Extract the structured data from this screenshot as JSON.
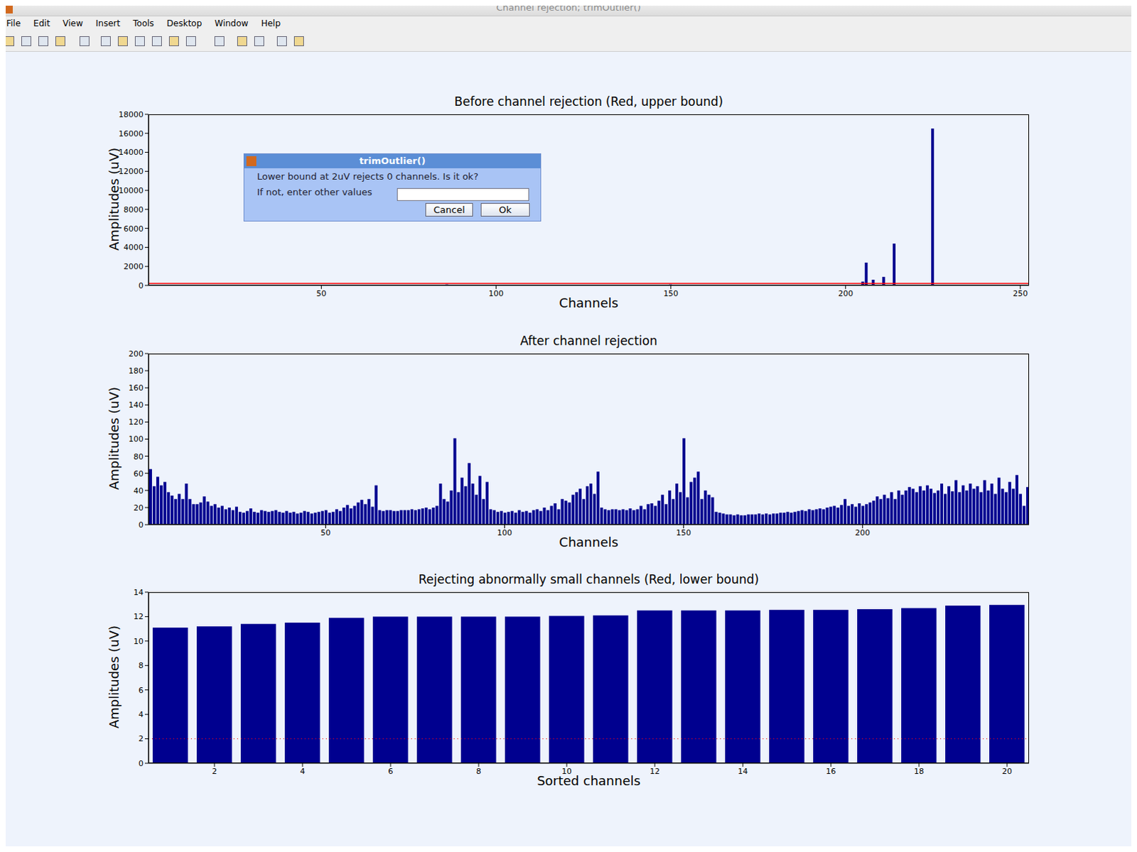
{
  "window": {
    "title": "Channel rejection; trimOutlier()",
    "menu": [
      "File",
      "Edit",
      "View",
      "Insert",
      "Tools",
      "Desktop",
      "Window",
      "Help"
    ]
  },
  "dialog": {
    "title": "trimOutlier()",
    "message": "Lower bound at 2uV rejects 0 channels. Is it ok?",
    "prompt": "If not, enter other values",
    "buttons": [
      "Cancel",
      "Ok"
    ]
  },
  "chart_data": [
    {
      "type": "bar",
      "title": "Before channel rejection (Red, upper bound)",
      "x_label": "Channels",
      "y_label": "Amplitudes (uV)",
      "color": "#00008f",
      "xlim": [
        0.5,
        252.5
      ],
      "xticks": [
        50,
        100,
        150,
        200,
        250
      ],
      "ylim": [
        0,
        18000
      ],
      "yticks": [
        0,
        2000,
        4000,
        6000,
        8000,
        10000,
        12000,
        14000,
        16000,
        18000
      ],
      "reference_line": {
        "value": 200,
        "color": "#ff0000",
        "line_style": "solid"
      },
      "x": [
        1,
        2,
        3,
        4,
        5,
        6,
        7,
        8,
        9,
        10,
        11,
        12,
        13,
        14,
        15,
        16,
        17,
        18,
        19,
        20,
        21,
        22,
        23,
        24,
        25,
        26,
        27,
        28,
        29,
        30,
        31,
        32,
        33,
        34,
        35,
        36,
        37,
        38,
        39,
        40,
        41,
        42,
        43,
        44,
        45,
        46,
        47,
        48,
        49,
        50,
        51,
        52,
        53,
        54,
        55,
        56,
        57,
        58,
        59,
        60,
        61,
        62,
        63,
        64,
        65,
        66,
        67,
        68,
        69,
        70,
        71,
        72,
        73,
        74,
        75,
        76,
        77,
        78,
        79,
        80,
        81,
        82,
        83,
        84,
        85,
        86,
        87,
        88,
        89,
        90,
        91,
        92,
        93,
        94,
        95,
        96,
        97,
        98,
        99,
        100,
        101,
        102,
        103,
        104,
        105,
        106,
        107,
        108,
        109,
        110,
        111,
        112,
        113,
        114,
        115,
        116,
        117,
        118,
        119,
        120,
        121,
        122,
        123,
        124,
        125,
        126,
        127,
        128,
        129,
        130,
        131,
        132,
        133,
        134,
        135,
        136,
        137,
        138,
        139,
        140,
        141,
        142,
        143,
        144,
        145,
        146,
        147,
        148,
        149,
        150,
        151,
        152,
        153,
        154,
        155,
        156,
        157,
        158,
        159,
        160,
        161,
        162,
        163,
        164,
        165,
        166,
        167,
        168,
        169,
        170,
        171,
        172,
        173,
        174,
        175,
        176,
        177,
        178,
        179,
        180,
        181,
        182,
        183,
        184,
        185,
        186,
        187,
        188,
        189,
        190,
        191,
        192,
        193,
        194,
        195,
        196,
        197,
        198,
        199,
        200,
        201,
        202,
        203,
        204,
        205,
        206,
        207,
        208,
        209,
        210,
        211,
        212,
        213,
        214,
        215,
        216,
        217,
        218,
        219,
        220,
        221,
        222,
        223,
        224,
        225,
        226,
        227,
        228,
        229,
        230,
        231,
        232,
        233,
        234,
        235,
        236,
        237,
        238,
        239,
        240,
        241,
        242,
        243,
        244,
        245,
        246,
        247,
        248,
        249,
        250,
        251,
        252
      ],
      "values": [
        65,
        45,
        56,
        46,
        50,
        38,
        34,
        30,
        36,
        30,
        48,
        30,
        24,
        24,
        26,
        33,
        27,
        22,
        24,
        20,
        22,
        18,
        20,
        17,
        21,
        15,
        14,
        16,
        19,
        15,
        14,
        17,
        16,
        15,
        16,
        17,
        15,
        14,
        16,
        14,
        15,
        13,
        14,
        16,
        15,
        13,
        14,
        15,
        16,
        17,
        14,
        15,
        18,
        16,
        20,
        23,
        19,
        22,
        26,
        29,
        24,
        30,
        21,
        46,
        17,
        16,
        17,
        17,
        16,
        16,
        17,
        17,
        17,
        18,
        17,
        18,
        19,
        20,
        18,
        20,
        22,
        48,
        30,
        27,
        40,
        101,
        38,
        55,
        45,
        72,
        48,
        35,
        57,
        30,
        50,
        18,
        17,
        15,
        16,
        14,
        15,
        16,
        14,
        17,
        15,
        16,
        14,
        17,
        18,
        16,
        20,
        17,
        22,
        25,
        18,
        30,
        28,
        26,
        35,
        38,
        42,
        30,
        45,
        48,
        36,
        62,
        20,
        18,
        17,
        18,
        18,
        17,
        18,
        17,
        19,
        17,
        18,
        22,
        18,
        24,
        25,
        22,
        28,
        35,
        24,
        40,
        30,
        48,
        38,
        101,
        32,
        50,
        55,
        62,
        30,
        40,
        35,
        32,
        15,
        14,
        13,
        12,
        12,
        11,
        12,
        11,
        11,
        12,
        12,
        12,
        13,
        12,
        13,
        12,
        13,
        13,
        14,
        14,
        15,
        14,
        15,
        16,
        17,
        16,
        18,
        17,
        18,
        19,
        18,
        20,
        21,
        22,
        20,
        23,
        30,
        22,
        24,
        21,
        25,
        22,
        24,
        26,
        28,
        33,
        400,
        2400,
        30,
        600,
        35,
        31,
        900,
        38,
        30,
        4400,
        40,
        35,
        40,
        44,
        42,
        38,
        45,
        40,
        46,
        42,
        16500,
        37,
        40,
        48,
        36,
        45,
        39,
        52,
        38,
        46,
        40,
        48,
        42,
        45,
        38,
        52,
        40,
        48,
        36,
        55,
        42,
        38,
        50,
        42,
        58,
        36,
        22,
        44
      ]
    },
    {
      "type": "bar",
      "title": "After channel rejection",
      "x_label": "Channels",
      "y_label": "Amplitudes (uV)",
      "color": "#00008f",
      "xlim": [
        0.5,
        246.5
      ],
      "xticks": [
        50,
        100,
        150,
        200
      ],
      "ylim": [
        0,
        200
      ],
      "yticks": [
        0,
        20,
        40,
        60,
        80,
        100,
        120,
        140,
        160,
        180,
        200
      ],
      "x": [
        1,
        2,
        3,
        4,
        5,
        6,
        7,
        8,
        9,
        10,
        11,
        12,
        13,
        14,
        15,
        16,
        17,
        18,
        19,
        20,
        21,
        22,
        23,
        24,
        25,
        26,
        27,
        28,
        29,
        30,
        31,
        32,
        33,
        34,
        35,
        36,
        37,
        38,
        39,
        40,
        41,
        42,
        43,
        44,
        45,
        46,
        47,
        48,
        49,
        50,
        51,
        52,
        53,
        54,
        55,
        56,
        57,
        58,
        59,
        60,
        61,
        62,
        63,
        64,
        65,
        66,
        67,
        68,
        69,
        70,
        71,
        72,
        73,
        74,
        75,
        76,
        77,
        78,
        79,
        80,
        81,
        82,
        83,
        84,
        85,
        86,
        87,
        88,
        89,
        90,
        91,
        92,
        93,
        94,
        95,
        96,
        97,
        98,
        99,
        100,
        101,
        102,
        103,
        104,
        105,
        106,
        107,
        108,
        109,
        110,
        111,
        112,
        113,
        114,
        115,
        116,
        117,
        118,
        119,
        120,
        121,
        122,
        123,
        124,
        125,
        126,
        127,
        128,
        129,
        130,
        131,
        132,
        133,
        134,
        135,
        136,
        137,
        138,
        139,
        140,
        141,
        142,
        143,
        144,
        145,
        146,
        147,
        148,
        149,
        150,
        151,
        152,
        153,
        154,
        155,
        156,
        157,
        158,
        159,
        160,
        161,
        162,
        163,
        164,
        165,
        166,
        167,
        168,
        169,
        170,
        171,
        172,
        173,
        174,
        175,
        176,
        177,
        178,
        179,
        180,
        181,
        182,
        183,
        184,
        185,
        186,
        187,
        188,
        189,
        190,
        191,
        192,
        193,
        194,
        195,
        196,
        197,
        198,
        199,
        200,
        201,
        202,
        203,
        204,
        205,
        206,
        207,
        208,
        209,
        210,
        211,
        212,
        213,
        214,
        215,
        216,
        217,
        218,
        219,
        220,
        221,
        222,
        223,
        224,
        225,
        226,
        227,
        228,
        229,
        230,
        231,
        232,
        233,
        234,
        235,
        236,
        237,
        238,
        239,
        240,
        241,
        242,
        243,
        244,
        245,
        246
      ],
      "values": [
        65,
        45,
        56,
        46,
        50,
        38,
        34,
        30,
        36,
        30,
        48,
        30,
        24,
        24,
        26,
        33,
        27,
        22,
        24,
        20,
        22,
        18,
        20,
        17,
        21,
        15,
        14,
        16,
        19,
        15,
        14,
        17,
        16,
        15,
        16,
        17,
        15,
        14,
        16,
        14,
        15,
        13,
        14,
        16,
        15,
        13,
        14,
        15,
        16,
        17,
        14,
        15,
        18,
        16,
        20,
        23,
        19,
        22,
        26,
        29,
        24,
        30,
        21,
        46,
        17,
        16,
        17,
        17,
        16,
        16,
        17,
        17,
        17,
        18,
        17,
        18,
        19,
        20,
        18,
        20,
        22,
        48,
        30,
        27,
        40,
        101,
        38,
        55,
        45,
        72,
        48,
        35,
        57,
        30,
        50,
        18,
        17,
        15,
        16,
        14,
        15,
        16,
        14,
        17,
        15,
        16,
        14,
        17,
        18,
        16,
        20,
        17,
        22,
        25,
        18,
        30,
        28,
        26,
        35,
        38,
        42,
        30,
        45,
        48,
        36,
        62,
        20,
        18,
        17,
        18,
        18,
        17,
        18,
        17,
        19,
        17,
        18,
        22,
        18,
        24,
        25,
        22,
        28,
        35,
        24,
        40,
        30,
        48,
        38,
        101,
        32,
        50,
        55,
        62,
        30,
        40,
        35,
        32,
        15,
        14,
        13,
        12,
        12,
        11,
        12,
        11,
        11,
        12,
        12,
        12,
        13,
        12,
        13,
        12,
        13,
        13,
        14,
        14,
        15,
        14,
        15,
        16,
        17,
        16,
        18,
        17,
        18,
        19,
        18,
        20,
        21,
        22,
        20,
        23,
        30,
        22,
        24,
        21,
        25,
        22,
        24,
        26,
        28,
        33,
        30,
        35,
        31,
        38,
        30,
        40,
        35,
        40,
        44,
        42,
        38,
        45,
        40,
        46,
        42,
        37,
        40,
        48,
        36,
        45,
        39,
        52,
        38,
        46,
        40,
        48,
        42,
        45,
        38,
        52,
        40,
        48,
        36,
        55,
        42,
        38,
        50,
        42,
        58,
        36,
        22,
        44
      ]
    },
    {
      "type": "bar",
      "title": "Rejecting abnormally small channels (Red, lower bound)",
      "x_label": "Sorted channels",
      "y_label": "Amplitudes (uV)",
      "color": "#00008f",
      "xlim": [
        0.5,
        20.5
      ],
      "xticks": [
        2,
        4,
        6,
        8,
        10,
        12,
        14,
        16,
        18,
        20
      ],
      "ylim": [
        0,
        14
      ],
      "yticks": [
        0,
        2,
        4,
        6,
        8,
        10,
        12,
        14
      ],
      "reference_line": {
        "value": 2,
        "color": "#ff0000",
        "line_style": "dotted"
      },
      "x": [
        1,
        2,
        3,
        4,
        5,
        6,
        7,
        8,
        9,
        10,
        11,
        12,
        13,
        14,
        15,
        16,
        17,
        18,
        19,
        20
      ],
      "values": [
        11.1,
        11.2,
        11.4,
        11.5,
        11.9,
        12.0,
        12.0,
        12.0,
        12.0,
        12.05,
        12.1,
        12.5,
        12.5,
        12.5,
        12.55,
        12.55,
        12.6,
        12.7,
        12.9,
        12.95
      ]
    }
  ]
}
